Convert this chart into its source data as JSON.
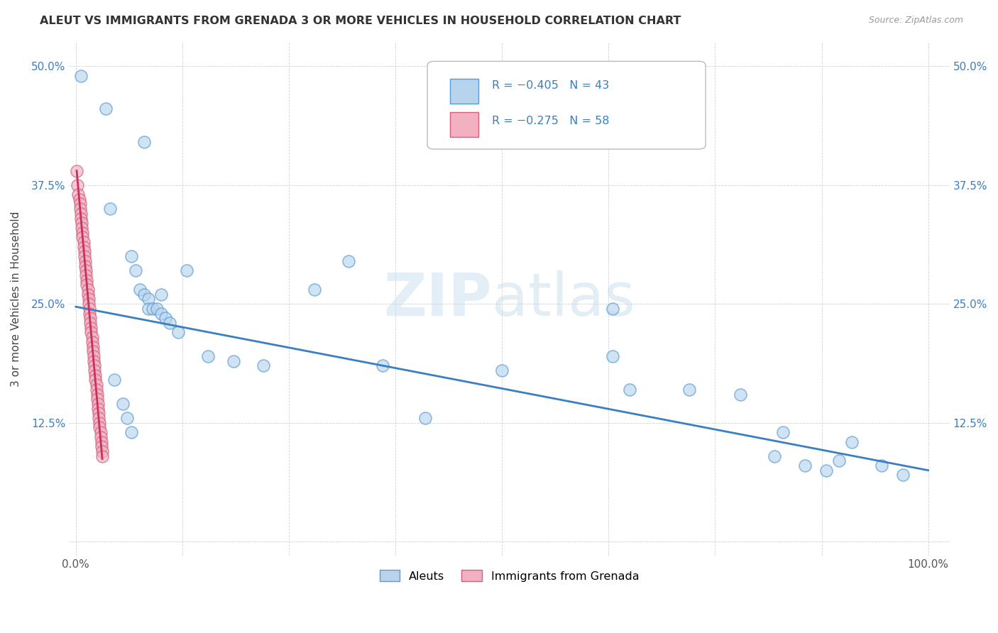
{
  "title": "ALEUT VS IMMIGRANTS FROM GRENADA 3 OR MORE VEHICLES IN HOUSEHOLD CORRELATION CHART",
  "source": "Source: ZipAtlas.com",
  "ylabel": "3 or more Vehicles in Household",
  "xlim": [
    -0.008,
    1.025
  ],
  "ylim": [
    -0.015,
    0.525
  ],
  "aleuts_color": "#b8d4ed",
  "aleuts_edge_color": "#5b9bd5",
  "grenada_color": "#f2b0c0",
  "grenada_edge_color": "#d06080",
  "aleuts_line_color": "#3a7fc1",
  "grenada_line_color": "#c83060",
  "aleuts_N": 43,
  "grenada_N": 58,
  "legend_label_aleuts": "Aleuts",
  "legend_label_grenada": "Immigrants from Grenada",
  "watermark_zip": "ZIP",
  "watermark_atlas": "atlas",
  "aleuts_x": [
    0.006,
    0.035,
    0.08,
    0.04,
    0.065,
    0.07,
    0.075,
    0.08,
    0.085,
    0.085,
    0.09,
    0.095,
    0.1,
    0.1,
    0.105,
    0.11,
    0.12,
    0.13,
    0.155,
    0.185,
    0.22,
    0.28,
    0.32,
    0.36,
    0.41,
    0.5,
    0.63,
    0.63,
    0.65,
    0.72,
    0.78,
    0.82,
    0.83,
    0.855,
    0.88,
    0.895,
    0.91,
    0.945,
    0.97,
    0.045,
    0.055,
    0.06,
    0.065
  ],
  "aleuts_y": [
    0.49,
    0.455,
    0.42,
    0.35,
    0.3,
    0.285,
    0.265,
    0.26,
    0.255,
    0.245,
    0.245,
    0.245,
    0.24,
    0.26,
    0.235,
    0.23,
    0.22,
    0.285,
    0.195,
    0.19,
    0.185,
    0.265,
    0.295,
    0.185,
    0.13,
    0.18,
    0.245,
    0.195,
    0.16,
    0.16,
    0.155,
    0.09,
    0.115,
    0.08,
    0.075,
    0.085,
    0.105,
    0.08,
    0.07,
    0.17,
    0.145,
    0.13,
    0.115
  ],
  "grenada_x": [
    0.001,
    0.002,
    0.003,
    0.004,
    0.005,
    0.005,
    0.006,
    0.006,
    0.007,
    0.007,
    0.008,
    0.008,
    0.009,
    0.009,
    0.01,
    0.01,
    0.011,
    0.011,
    0.012,
    0.012,
    0.013,
    0.013,
    0.014,
    0.014,
    0.015,
    0.015,
    0.016,
    0.016,
    0.017,
    0.017,
    0.018,
    0.018,
    0.019,
    0.019,
    0.02,
    0.02,
    0.021,
    0.021,
    0.022,
    0.022,
    0.023,
    0.023,
    0.024,
    0.024,
    0.025,
    0.025,
    0.026,
    0.026,
    0.027,
    0.027,
    0.028,
    0.028,
    0.029,
    0.029,
    0.03,
    0.03,
    0.031,
    0.031
  ],
  "grenada_y": [
    0.39,
    0.375,
    0.365,
    0.36,
    0.355,
    0.35,
    0.345,
    0.34,
    0.335,
    0.33,
    0.325,
    0.32,
    0.315,
    0.31,
    0.305,
    0.3,
    0.295,
    0.29,
    0.285,
    0.28,
    0.275,
    0.27,
    0.265,
    0.26,
    0.255,
    0.25,
    0.245,
    0.24,
    0.235,
    0.23,
    0.225,
    0.22,
    0.215,
    0.21,
    0.205,
    0.2,
    0.195,
    0.19,
    0.185,
    0.18,
    0.175,
    0.17,
    0.165,
    0.16,
    0.155,
    0.15,
    0.145,
    0.14,
    0.135,
    0.13,
    0.125,
    0.12,
    0.115,
    0.11,
    0.105,
    0.1,
    0.095,
    0.09
  ],
  "blue_line_x": [
    0.0,
    1.0
  ],
  "blue_line_y": [
    0.247,
    0.075
  ],
  "pink_line_x": [
    0.001,
    0.031
  ],
  "pink_line_y": [
    0.39,
    0.087
  ]
}
